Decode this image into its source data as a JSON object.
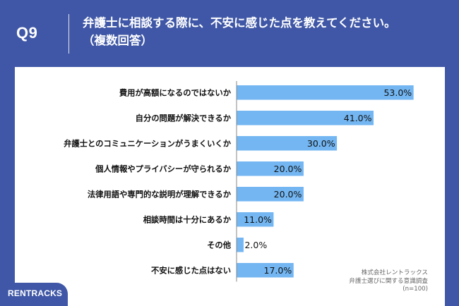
{
  "header": {
    "question_number": "Q9",
    "title_line1": "弁護士に相談する際に、不安に感じた点を教えてください。",
    "title_line2": "（複数回答）"
  },
  "chart_data": {
    "type": "bar",
    "orientation": "horizontal",
    "categories": [
      "費用が高額になるのではないか",
      "自分の問題が解決できるか",
      "弁護士とのコミュニケーションがうまくいくか",
      "個人情報やプライバシーが守られるか",
      "法律用語や専門的な説明が理解できるか",
      "相談時間は十分にあるか",
      "その他",
      "不安に感じた点はない"
    ],
    "values": [
      53.0,
      41.0,
      30.0,
      20.0,
      20.0,
      11.0,
      2.0,
      17.0
    ],
    "value_labels": [
      "53.0%",
      "41.0%",
      "30.0%",
      "20.0%",
      "20.0%",
      "11.0%",
      "2.0%",
      "17.0%"
    ],
    "xlim": [
      0,
      60
    ],
    "bar_color": "#73b6f2",
    "axis_color": "#8a8a8a",
    "grid": false,
    "legend": false
  },
  "source": {
    "company": "株式会社レントラックス",
    "survey": "弁護士選びに関する意識調査",
    "sample": "(n=100)"
  },
  "brand": {
    "label": "RENTRACKS"
  },
  "colors": {
    "background": "#3f57a6",
    "panel": "#ffffff"
  }
}
